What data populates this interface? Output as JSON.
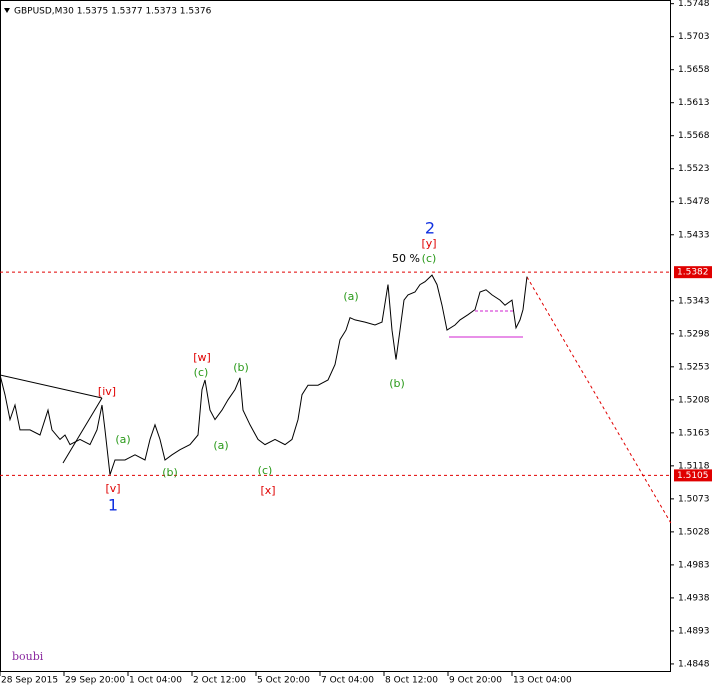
{
  "chart_data": {
    "type": "line",
    "title": "GBPUSD,M30  1.5375 1.5377 1.5373 1.5376",
    "watermark": "boubi",
    "color": "#000000",
    "x": [
      0,
      2.5,
      5,
      7.5,
      10,
      15,
      20,
      24,
      26,
      30,
      32.5,
      35,
      40,
      45,
      48.5,
      51,
      52.5,
      55,
      57.5,
      62.5,
      67.5,
      72.5,
      75,
      77.5,
      80,
      82.5,
      86,
      90,
      95,
      99,
      101,
      102.5,
      105,
      107.5,
      111,
      114,
      117.5,
      120,
      121.5,
      125,
      129,
      132.5,
      137.5,
      142.5,
      146,
      149,
      151,
      154,
      159,
      164,
      167.5,
      170,
      173,
      175,
      177.5,
      182.5,
      187.5,
      191,
      194,
      196,
      198,
      200,
      202,
      204,
      207.5,
      210,
      212.5,
      216,
      218.5,
      221,
      223.5,
      227.5,
      230,
      234,
      237.5,
      240,
      243,
      246,
      250,
      252.5,
      256,
      258,
      260,
      261.5,
      263.5
    ],
    "values": [
      1.5242,
      1.5215,
      1.5181,
      1.5201,
      1.5167,
      1.5167,
      1.516,
      1.5194,
      1.5167,
      1.5154,
      1.516,
      1.5147,
      1.5154,
      1.5147,
      1.5167,
      1.5201,
      1.5167,
      1.5106,
      1.5126,
      1.5126,
      1.5133,
      1.5126,
      1.5154,
      1.5174,
      1.5154,
      1.5126,
      1.5133,
      1.514,
      1.5147,
      1.516,
      1.5222,
      1.5235,
      1.5194,
      1.5181,
      1.5194,
      1.5208,
      1.5222,
      1.5238,
      1.5194,
      1.5174,
      1.5154,
      1.5147,
      1.5154,
      1.5147,
      1.5154,
      1.5181,
      1.5215,
      1.5228,
      1.5228,
      1.5235,
      1.5256,
      1.529,
      1.5303,
      1.532,
      1.5317,
      1.5314,
      1.531,
      1.5314,
      1.5365,
      1.5303,
      1.5263,
      1.5303,
      1.5344,
      1.5351,
      1.5355,
      1.5365,
      1.5369,
      1.5378,
      1.5365,
      1.5337,
      1.5303,
      1.531,
      1.5317,
      1.5324,
      1.5331,
      1.5355,
      1.5358,
      1.5351,
      1.5344,
      1.5337,
      1.5344,
      1.5306,
      1.5317,
      1.5331,
      1.5376
    ],
    "xlim": [
      0,
      335
    ],
    "xticks": [
      {
        "value": 0,
        "label": "28 Sep 2015"
      },
      {
        "value": 32,
        "label": "29 Sep 20:00"
      },
      {
        "value": 64,
        "label": "1 Oct 04:00"
      },
      {
        "value": 96,
        "label": "2 Oct 12:00"
      },
      {
        "value": 128,
        "label": "5 Oct 20:00"
      },
      {
        "value": 160,
        "label": "7 Oct 04:00"
      },
      {
        "value": 192,
        "label": "8 Oct 12:00"
      },
      {
        "value": 224,
        "label": "9 Oct 20:00"
      },
      {
        "value": 256,
        "label": "13 Oct 04:00"
      }
    ],
    "ylim": [
      1.4837,
      1.5753
    ],
    "yticks": [
      1.5748,
      1.5703,
      1.5658,
      1.5613,
      1.5568,
      1.5523,
      1.5478,
      1.5433,
      1.5343,
      1.5298,
      1.5253,
      1.5208,
      1.5163,
      1.5118,
      1.5073,
      1.5028,
      1.4983,
      1.4938,
      1.4893,
      1.4848
    ],
    "levels": [
      {
        "value": 1.5382,
        "color": "#e00000"
      },
      {
        "value": 1.5105,
        "color": "#e00000"
      }
    ],
    "annotations": [
      {
        "text": "[iv]",
        "color": "#e00000"
      },
      {
        "text": "[v]",
        "color": "#e00000"
      },
      {
        "text": "1",
        "color": "#1030e0"
      },
      {
        "text": "(a)",
        "color": "#2a9a1a"
      },
      {
        "text": "(b)",
        "color": "#2a9a1a"
      },
      {
        "text": "[w]",
        "color": "#e00000"
      },
      {
        "text": "(c)",
        "color": "#2a9a1a"
      },
      {
        "text": "(b)",
        "color": "#2a9a1a"
      },
      {
        "text": "(a)",
        "color": "#2a9a1a"
      },
      {
        "text": "(c)",
        "color": "#2a9a1a"
      },
      {
        "text": "[x]",
        "color": "#e00000"
      },
      {
        "text": "(a)",
        "color": "#2a9a1a"
      },
      {
        "text": "(b)",
        "color": "#2a9a1a"
      },
      {
        "text": "2",
        "color": "#1030e0"
      },
      {
        "text": "[y]",
        "color": "#e00000"
      },
      {
        "text": "50 %",
        "color": "#000000"
      },
      {
        "text": "(c)",
        "color": "#2a9a1a"
      }
    ]
  }
}
